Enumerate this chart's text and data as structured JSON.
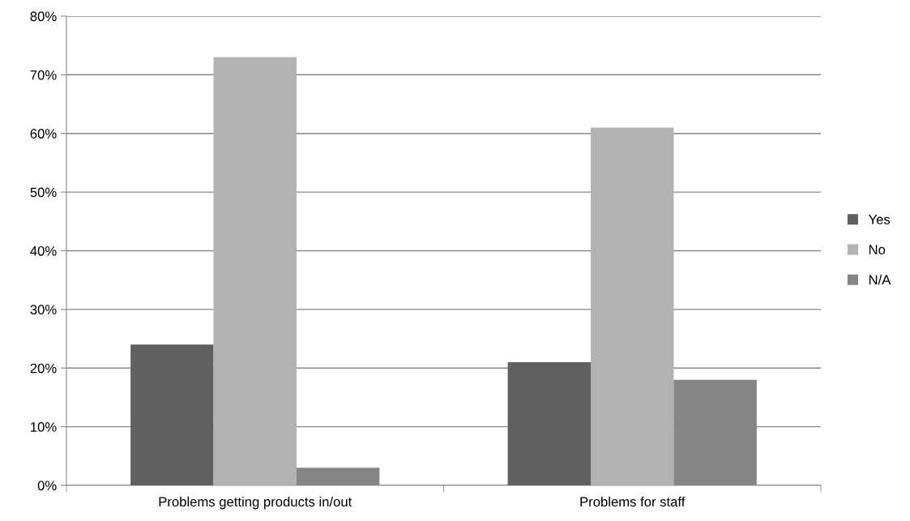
{
  "chart_data": {
    "type": "bar",
    "categories": [
      "Problems getting products in/out",
      "Problems for staff"
    ],
    "series": [
      {
        "name": "Yes",
        "color": "#606060",
        "values": [
          24,
          21
        ]
      },
      {
        "name": "No",
        "color": "#b2b2b2",
        "values": [
          73,
          61
        ]
      },
      {
        "name": "N/A",
        "color": "#858585",
        "values": [
          3,
          18
        ]
      }
    ],
    "ylim": [
      0,
      80
    ],
    "yticks": [
      {
        "value": 0,
        "label": "0%"
      },
      {
        "value": 10,
        "label": "10%"
      },
      {
        "value": 20,
        "label": "20%"
      },
      {
        "value": 30,
        "label": "30%"
      },
      {
        "value": 40,
        "label": "40%"
      },
      {
        "value": 50,
        "label": "50%"
      },
      {
        "value": 60,
        "label": "60%"
      },
      {
        "value": 70,
        "label": "70%"
      },
      {
        "value": 80,
        "label": "80%"
      }
    ],
    "grid": "y",
    "legend": "right"
  }
}
